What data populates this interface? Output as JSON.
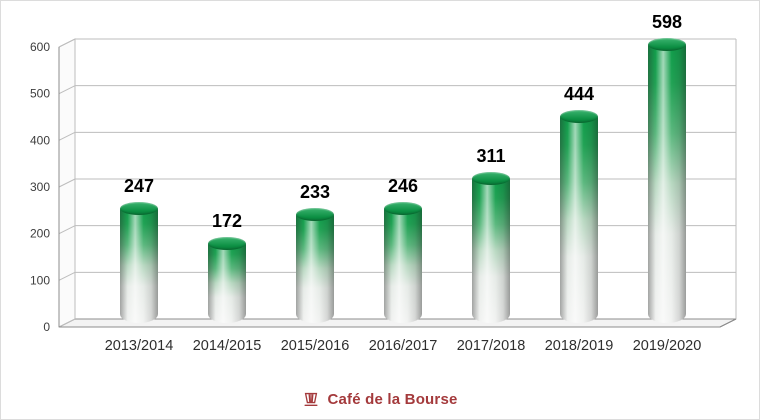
{
  "chart_data": {
    "type": "bar",
    "style": "3d-cylinder",
    "title": "",
    "xlabel": "",
    "ylabel": "",
    "categories": [
      "2013/2014",
      "2014/2015",
      "2015/2016",
      "2016/2017",
      "2017/2018",
      "2018/2019",
      "2019/2020"
    ],
    "values": [
      247,
      172,
      233,
      246,
      311,
      444,
      598
    ],
    "ylim": [
      0,
      600
    ],
    "yticks": [
      0,
      100,
      200,
      300,
      400,
      500,
      600
    ],
    "grid": true,
    "legend": "none",
    "value_labels_shown": true,
    "colors": {
      "bar_green": "#0f9d4a",
      "bar_silver": "#f1f2f1",
      "grid": "#bdbdbd",
      "axis_text": "#3d3d3d",
      "value_label": "#000000"
    }
  },
  "footer": {
    "brand": "Café de la Bourse",
    "brand_color": "#a43a3c",
    "icon": "coffee-cup-icon"
  }
}
